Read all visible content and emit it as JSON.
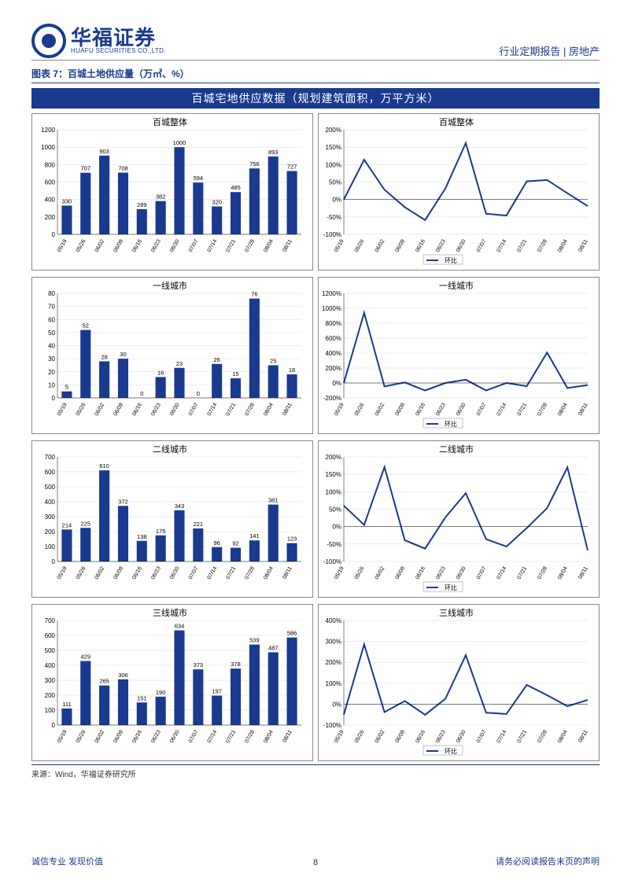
{
  "header": {
    "logo_cn": "华福证券",
    "logo_en": "HUAFU SECURITIES CO.,LTD.",
    "right": "行业定期报告 | 房地产"
  },
  "fig_title": "图表 7：百城土地供应量（万㎡、%）",
  "banner": "百城宅地供应数据（规划建筑面积，万平方米）",
  "dates": [
    "05/19",
    "05/26",
    "06/02",
    "06/09",
    "06/16",
    "06/23",
    "06/30",
    "07/07",
    "07/14",
    "07/21",
    "07/28",
    "08/04",
    "08/11"
  ],
  "legend_label": "环比",
  "charts": [
    {
      "title": "百城整体",
      "type": "bar",
      "values": [
        330,
        707,
        903,
        708,
        289,
        382,
        1000,
        594,
        320,
        485,
        756,
        893,
        727
      ],
      "ymax": 1200,
      "ystep": 200
    },
    {
      "title": "百城整体",
      "type": "line",
      "values": [
        0,
        114,
        28,
        -22,
        -59,
        32,
        162,
        -41,
        -46,
        52,
        56,
        18,
        -19
      ],
      "ymin": -100,
      "ymax": 200,
      "ystep": 50,
      "pct": true
    },
    {
      "title": "一线城市",
      "type": "bar",
      "values": [
        5,
        52,
        28,
        30,
        0,
        16,
        23,
        0,
        26,
        15,
        76,
        25,
        18
      ],
      "ymax": 80,
      "ystep": 10
    },
    {
      "title": "一线城市",
      "type": "line",
      "values": [
        0,
        940,
        -46,
        7,
        -100,
        0,
        44,
        -100,
        0,
        -42,
        407,
        -67,
        -28
      ],
      "ymin": -200,
      "ymax": 1200,
      "ystep": 200,
      "pct": true
    },
    {
      "title": "二线城市",
      "type": "bar",
      "values": [
        214,
        225,
        610,
        372,
        138,
        175,
        343,
        221,
        96,
        92,
        141,
        381,
        123
      ],
      "ymax": 700,
      "ystep": 100
    },
    {
      "title": "二线城市",
      "type": "line",
      "values": [
        60,
        5,
        171,
        -39,
        -63,
        27,
        96,
        -36,
        -57,
        -4,
        53,
        170,
        -68
      ],
      "ymin": -100,
      "ymax": 200,
      "ystep": 50,
      "pct": true
    },
    {
      "title": "三线城市",
      "type": "bar",
      "values": [
        111,
        429,
        265,
        306,
        151,
        190,
        634,
        373,
        197,
        378,
        539,
        487,
        586
      ],
      "ymax": 700,
      "ystep": 100
    },
    {
      "title": "三线城市",
      "type": "line",
      "values": [
        -50,
        286,
        -38,
        15,
        -51,
        26,
        234,
        -41,
        -47,
        92,
        43,
        -10,
        20
      ],
      "ymin": -100,
      "ymax": 400,
      "ystep": 100,
      "pct": true
    }
  ],
  "source": "来源：Wind，华福证券研究所",
  "footer": {
    "left": "诚信专业  发现价值",
    "page": "8",
    "right": "请务必阅读报告末页的声明"
  },
  "colors": {
    "primary": "#1a3a8f",
    "grid": "#dddddd",
    "text": "#000000"
  }
}
